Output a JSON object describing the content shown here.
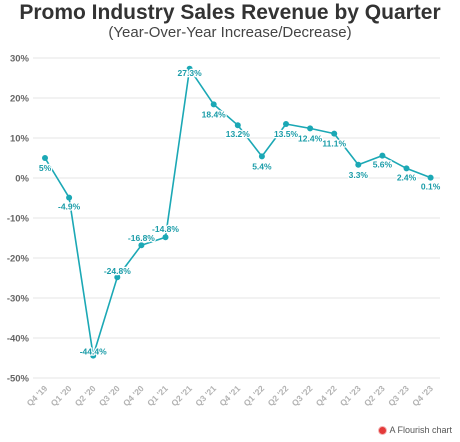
{
  "chart_data": {
    "type": "line",
    "title": "Promo Industry Sales Revenue by Quarter",
    "subtitle": "(Year-Over-Year Increase/Decrease)",
    "xlabel": "",
    "ylabel": "",
    "ylim": [
      -50,
      30
    ],
    "yticks": [
      30,
      20,
      10,
      0,
      -10,
      -20,
      -30,
      -40,
      -50
    ],
    "ytick_labels": [
      "30%",
      "20%",
      "10%",
      "0%",
      "-10%",
      "-20%",
      "-30%",
      "-40%",
      "-50%"
    ],
    "grid": true,
    "categories": [
      "Q4 '19",
      "Q1 '20",
      "Q2 '20",
      "Q3 '20",
      "Q4 '20",
      "Q1 '21",
      "Q2 '21",
      "Q3 '21",
      "Q4 '21",
      "Q1 '22",
      "Q2 '22",
      "Q3 '22",
      "Q4 '22",
      "Q1 '23",
      "Q2 '23",
      "Q3 '23",
      "Q4 '23"
    ],
    "series": [
      {
        "values": [
          5,
          -4.9,
          -44.4,
          -24.8,
          -16.8,
          -14.8,
          27.3,
          18.4,
          13.2,
          5.4,
          13.5,
          12.4,
          11.1,
          3.3,
          5.6,
          2.4,
          0.1
        ],
        "labels": [
          "5%",
          "-4.9%",
          "-44.4%",
          "-24.8%",
          "-16.8%",
          "-14.8%",
          "27.3%",
          "18.4%",
          "13.2%",
          "5.4%",
          "13.5%",
          "12.4%",
          "11.1%",
          "3.3%",
          "5.6%",
          "2.4%",
          "0.1%"
        ],
        "color": "#1ba8b5"
      }
    ],
    "label_color": "#1a9ca8"
  },
  "credit": {
    "text": "A Flourish chart",
    "icon": "flourish-logo-icon"
  }
}
